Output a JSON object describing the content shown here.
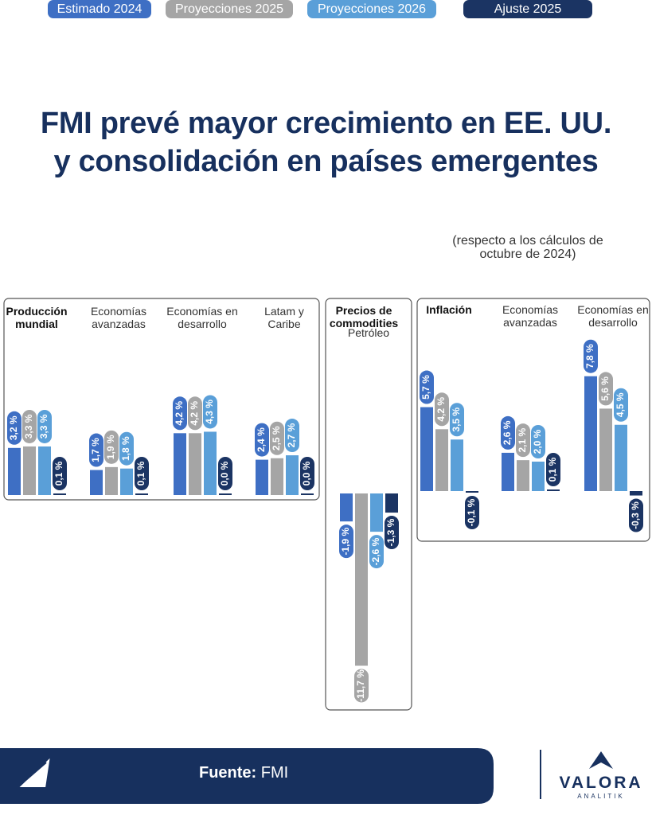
{
  "title": [
    "FMI prevé mayor crecimiento en EE. UU.",
    "y consolidación en países emergentes"
  ],
  "legend": {
    "note": "(respecto a los cálculos de octubre de 2024)"
  },
  "chart_data": [
    {
      "type": "bar",
      "categories": [
        "Producción mundial",
        "Economías avanzadas",
        "Economías en desarrollo",
        "Latam y Caribe"
      ],
      "series": [
        {
          "name": "Estimado 2024",
          "color": "#3e6fc4",
          "values": [
            3.2,
            1.7,
            4.2,
            2.4
          ],
          "value_labels": [
            "3,2 %",
            "1,7 %",
            "4,2 %",
            "2,4 %"
          ]
        },
        {
          "name": "Proyecciones 2025",
          "color": "#a5a5a5",
          "values": [
            3.3,
            1.9,
            4.2,
            2.5
          ],
          "value_labels": [
            "3,3 %",
            "1,9 %",
            "4,2 %",
            "2,5 %"
          ]
        },
        {
          "name": "Proyecciones 2026",
          "color": "#5a9fd8",
          "values": [
            3.3,
            1.8,
            4.3,
            2.7
          ],
          "value_labels": [
            "3,3 %",
            "1,8 %",
            "4,3 %",
            "2,7 %"
          ]
        },
        {
          "name": "Ajuste 2025",
          "color": "#1b3463",
          "values": [
            0.1,
            0.1,
            0.0,
            0.0
          ],
          "value_labels": [
            "0,1 %",
            "0,1 %",
            "0,0 %",
            "0,0 %"
          ]
        }
      ]
    },
    {
      "type": "bar",
      "title": "Precios de commodities",
      "categories": [
        "Petróleo"
      ],
      "series": [
        {
          "color": "#3e6fc4",
          "values": [
            -1.9
          ],
          "value_labels": [
            "-1,9 %"
          ]
        },
        {
          "color": "#a5a5a5",
          "values": [
            -11.7
          ],
          "value_labels": [
            "-11,7 %"
          ]
        },
        {
          "color": "#5a9fd8",
          "values": [
            -2.6
          ],
          "value_labels": [
            "-2,6 %"
          ]
        },
        {
          "color": "#1b3463",
          "values": [
            -1.3
          ],
          "value_labels": [
            "-1,3 %"
          ]
        }
      ]
    },
    {
      "type": "bar",
      "categories": [
        "Inflación",
        "Economías avanzadas",
        "Economías en desarrollo"
      ],
      "series": [
        {
          "color": "#3e6fc4",
          "values": [
            5.7,
            2.6,
            7.8
          ],
          "value_labels": [
            "5,7 %",
            "2,6 %",
            "7,8 %"
          ]
        },
        {
          "color": "#a5a5a5",
          "values": [
            4.2,
            2.1,
            5.6
          ],
          "value_labels": [
            "4,2 %",
            "2,1 %",
            "5,6 %"
          ]
        },
        {
          "color": "#5a9fd8",
          "values": [
            3.5,
            2.0,
            4.5
          ],
          "value_labels": [
            "3,5 %",
            "2,0 %",
            "4,5 %"
          ]
        },
        {
          "color": "#1b3463",
          "values": [
            -0.1,
            0.1,
            -0.3
          ],
          "value_labels": [
            "-0,1 %",
            "0,1 %",
            "-0,3 %"
          ]
        }
      ]
    }
  ],
  "footer": {
    "source_label": "Fuente:",
    "source": "FMI"
  },
  "brand": {
    "name": "VALORA",
    "tagline": "ANALITIK"
  }
}
